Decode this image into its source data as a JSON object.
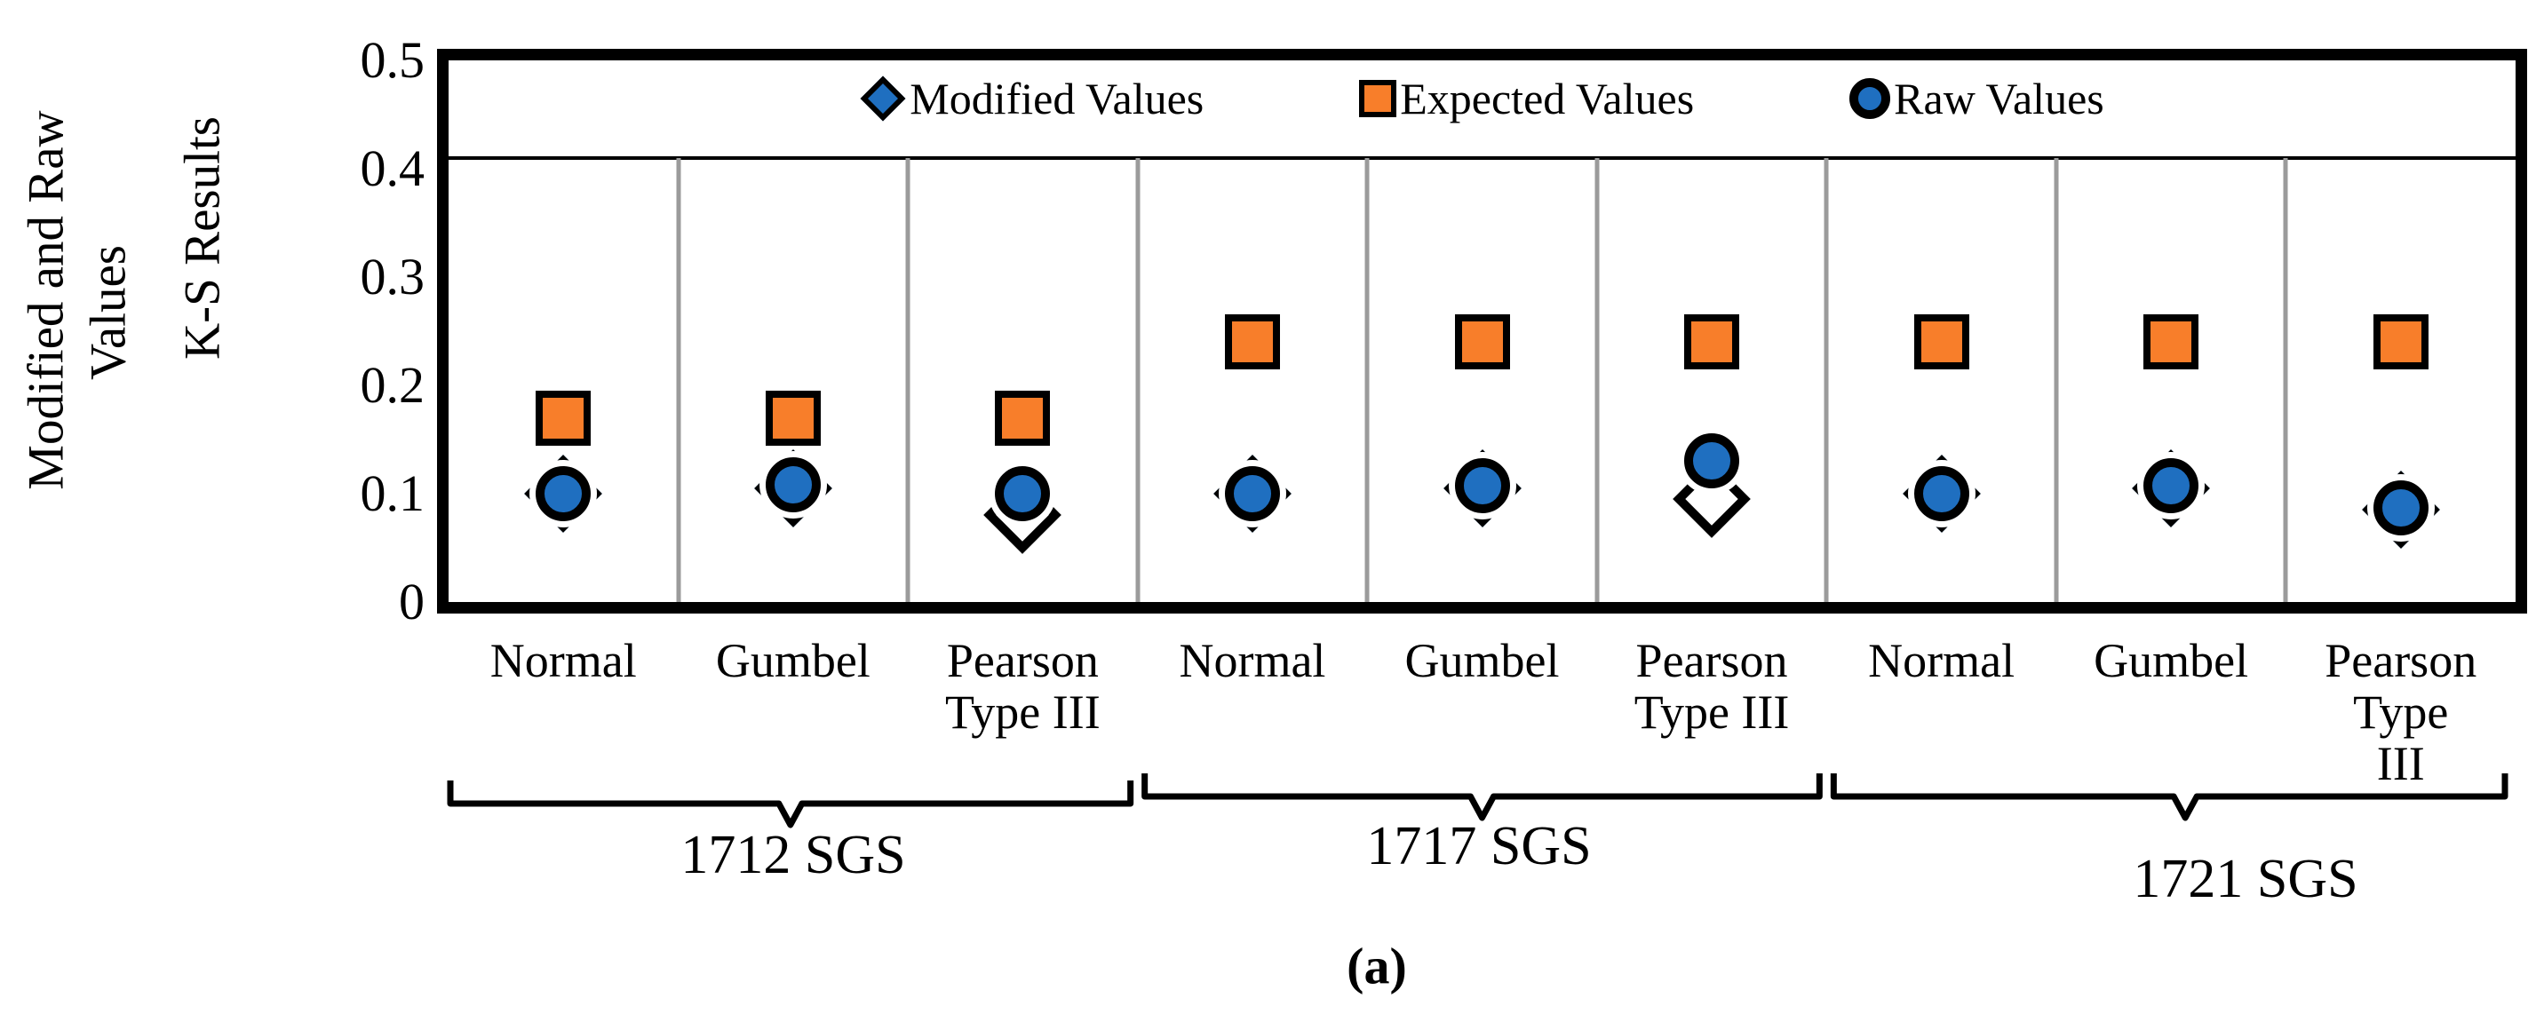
{
  "chart_data": {
    "type": "scatter",
    "ylabel_lines": [
      "Modified and Raw",
      "Values",
      "K-S Results"
    ],
    "yticks": [
      "0.5",
      "0.4",
      "0.3",
      "0.2",
      "0.1",
      "0"
    ],
    "ytick_values": [
      0.5,
      0.4,
      0.3,
      0.2,
      0.1,
      0
    ],
    "ylim": [
      0,
      0.5
    ],
    "grid": "vertical category separators, gray",
    "separator_line_value": 0.41,
    "legend_position": "top inside plot",
    "groups": [
      {
        "label": "1712 SGS"
      },
      {
        "label": "1717 SGS"
      },
      {
        "label": "1721 SGS"
      }
    ],
    "categories": [
      {
        "label_lines": [
          "Normal"
        ],
        "group": 0
      },
      {
        "label_lines": [
          "Gumbel"
        ],
        "group": 0
      },
      {
        "label_lines": [
          "Pearson",
          "Type III"
        ],
        "group": 0
      },
      {
        "label_lines": [
          "Normal"
        ],
        "group": 1
      },
      {
        "label_lines": [
          "Gumbel"
        ],
        "group": 1
      },
      {
        "label_lines": [
          "Pearson",
          "Type III"
        ],
        "group": 1
      },
      {
        "label_lines": [
          "Normal"
        ],
        "group": 2
      },
      {
        "label_lines": [
          "Gumbel"
        ],
        "group": 2
      },
      {
        "label_lines": [
          "Pearson",
          "Type III"
        ],
        "group": 2
      }
    ],
    "series": [
      {
        "name": "Modified Values",
        "marker": "diamond",
        "color": "#1f6fc0",
        "values": [
          0.1,
          0.105,
          0.08,
          0.1,
          0.105,
          0.095,
          0.1,
          0.105,
          0.085
        ],
        "marker_fill_overrides": {
          "2": "#ffffff",
          "5": "#ffffff"
        }
      },
      {
        "name": "Expected Values",
        "marker": "square",
        "color": "#f87e2a",
        "values": [
          0.17,
          0.17,
          0.17,
          0.24,
          0.24,
          0.24,
          0.24,
          0.24,
          0.24
        ]
      },
      {
        "name": "Raw Values",
        "marker": "circle",
        "color": "#1f6fc0",
        "values": [
          0.1,
          0.108,
          0.1,
          0.1,
          0.107,
          0.13,
          0.1,
          0.107,
          0.087
        ]
      }
    ],
    "caption": "(a)"
  }
}
